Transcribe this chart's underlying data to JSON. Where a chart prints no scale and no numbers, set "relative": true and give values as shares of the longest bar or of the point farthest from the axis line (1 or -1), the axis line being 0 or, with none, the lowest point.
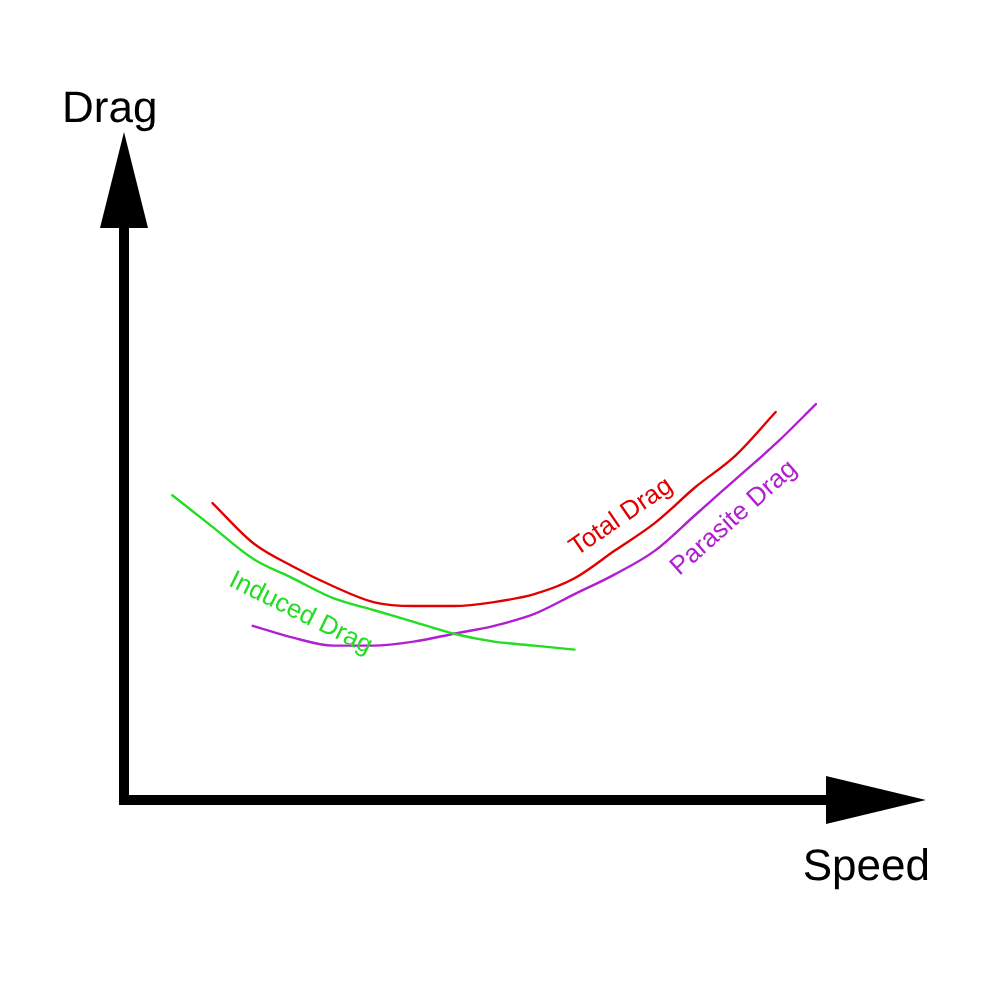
{
  "chart_data": {
    "type": "line",
    "xlabel": "Speed",
    "annotations": [
      "Drag"
    ],
    "relative": true,
    "legend": false,
    "grid": false,
    "marker": "none",
    "line_style": "solid",
    "categories": [
      null,
      null,
      null,
      null,
      null,
      null,
      null,
      null,
      null,
      null,
      null,
      null,
      null,
      null,
      null,
      null,
      null
    ],
    "series": [
      {
        "name": "Total Drag",
        "color": "#e00000",
        "values": [
          null,
          0.75,
          0.65,
          0.59,
          0.54,
          0.5,
          0.49,
          0.49,
          0.5,
          0.52,
          0.56,
          0.63,
          0.7,
          0.79,
          0.87,
          0.98,
          null
        ]
      },
      {
        "name": "Induced Drag",
        "color": "#22dd22",
        "values": [
          0.77,
          0.69,
          0.61,
          0.56,
          0.51,
          0.48,
          0.45,
          0.42,
          0.4,
          0.39,
          0.38,
          null,
          null,
          null,
          null,
          null,
          null
        ]
      },
      {
        "name": "Parasite Drag",
        "color": "#b020d0",
        "values": [
          null,
          null,
          0.44,
          0.41,
          0.39,
          0.39,
          0.4,
          0.42,
          0.44,
          0.47,
          0.52,
          0.57,
          0.63,
          0.72,
          0.81,
          0.9,
          1
        ]
      }
    ]
  }
}
